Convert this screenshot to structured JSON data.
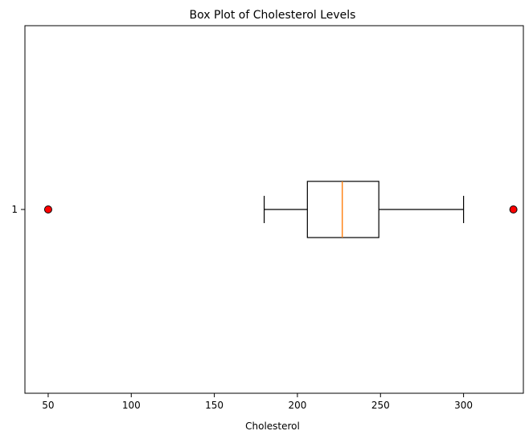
{
  "chart_data": {
    "type": "boxplot",
    "title": "Box Plot of Cholesterol Levels",
    "xlabel": "Cholesterol",
    "ylabel": "",
    "orientation": "horizontal",
    "xlim": [
      36,
      336
    ],
    "x_ticks": [
      50,
      100,
      150,
      200,
      250,
      300
    ],
    "y_ticks": [
      "1"
    ],
    "grid": false,
    "series": [
      {
        "category": "1",
        "whisker_low": 180,
        "q1": 206,
        "median": 227,
        "q3": 249,
        "whisker_high": 300,
        "outliers": [
          50,
          330
        ]
      }
    ],
    "colors": {
      "box": "#000000",
      "median": "#ff7f0e",
      "outlier_fill": "#ff0000",
      "outlier_edge": "#000000"
    }
  }
}
